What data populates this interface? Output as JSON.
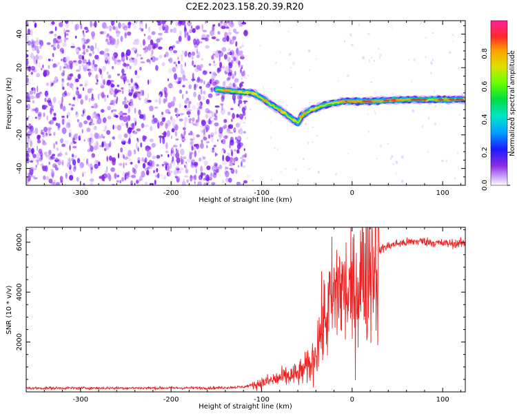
{
  "title": "C2E2.2023.158.20.39.R20",
  "chart_data": [
    {
      "type": "heatmap",
      "xlabel": "Height of straight line (km)",
      "ylabel": "Frequency (Hz)",
      "xlim": [
        -360,
        125
      ],
      "ylim": [
        -50,
        48
      ],
      "x_ticks": [
        -300,
        -200,
        -100,
        0,
        100
      ],
      "y_ticks": [
        -40,
        -20,
        0,
        20,
        40
      ],
      "grid": false,
      "colorbar": {
        "label": "Normalized spectral amplitude",
        "range": [
          0,
          1
        ],
        "ticks": [
          0.0,
          0.2,
          0.4,
          0.6,
          0.8
        ],
        "colormap": "gist_ncar"
      },
      "signal_track": [
        {
          "x": -150,
          "y": 7
        },
        {
          "x": -130,
          "y": 6
        },
        {
          "x": -110,
          "y": 5
        },
        {
          "x": -100,
          "y": 2
        },
        {
          "x": -90,
          "y": -2
        },
        {
          "x": -80,
          "y": -5
        },
        {
          "x": -70,
          "y": -9
        },
        {
          "x": -60,
          "y": -13
        },
        {
          "x": -55,
          "y": -8
        },
        {
          "x": -45,
          "y": -5
        },
        {
          "x": -35,
          "y": -3
        },
        {
          "x": -20,
          "y": -1
        },
        {
          "x": -10,
          "y": 0
        },
        {
          "x": 0,
          "y": 0
        },
        {
          "x": 20,
          "y": 0
        },
        {
          "x": 60,
          "y": 1
        },
        {
          "x": 100,
          "y": 1
        },
        {
          "x": 125,
          "y": 1
        }
      ],
      "noise_region_x": [
        -360,
        -125
      ]
    },
    {
      "type": "line",
      "xlabel": "Height of straight line (km)",
      "ylabel": "SNR (10 * v/v)",
      "xlim": [
        -360,
        125
      ],
      "ylim": [
        0,
        6600
      ],
      "x_ticks": [
        -300,
        -200,
        -100,
        0,
        100
      ],
      "y_ticks": [
        2000,
        4000,
        6000
      ],
      "grid": false,
      "series_color": "#ee2222",
      "profile": [
        {
          "x": -360,
          "y": 150
        },
        {
          "x": -150,
          "y": 160
        },
        {
          "x": -120,
          "y": 200
        },
        {
          "x": -100,
          "y": 350
        },
        {
          "x": -80,
          "y": 550
        },
        {
          "x": -60,
          "y": 700
        },
        {
          "x": -45,
          "y": 1100
        },
        {
          "x": -35,
          "y": 2400
        },
        {
          "x": -25,
          "y": 3400
        },
        {
          "x": -15,
          "y": 4200
        },
        {
          "x": 0,
          "y": 3800
        },
        {
          "x": 10,
          "y": 4600
        },
        {
          "x": 20,
          "y": 5300
        },
        {
          "x": 35,
          "y": 5800
        },
        {
          "x": 50,
          "y": 5950
        },
        {
          "x": 75,
          "y": 6050
        },
        {
          "x": 100,
          "y": 5950
        },
        {
          "x": 125,
          "y": 5950
        }
      ]
    }
  ]
}
